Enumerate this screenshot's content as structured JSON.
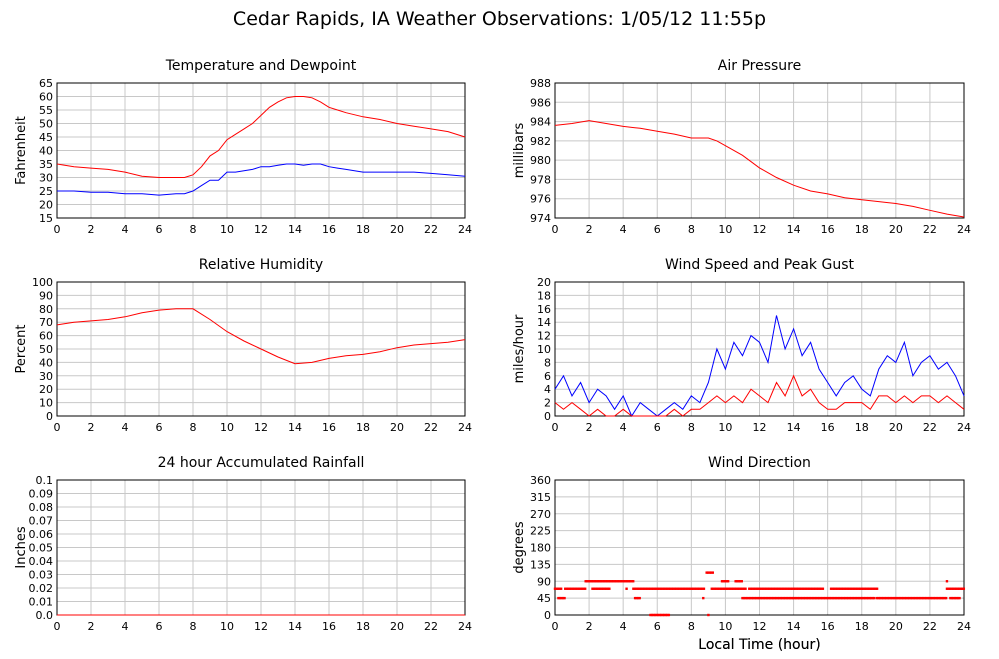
{
  "page_title": "Cedar Rapids, IA Weather Observations: 1/05/12 11:55p",
  "xlabel_bottom": "Local Time (hour)",
  "x_ticks": [
    0,
    2,
    4,
    6,
    8,
    10,
    12,
    14,
    16,
    18,
    20,
    22,
    24
  ],
  "colors": {
    "red": "#ff0000",
    "blue": "#0000ff",
    "grid": "#c8c8c8",
    "axis": "#000000"
  },
  "chart_data": [
    {
      "id": "temp",
      "type": "line",
      "title": "Temperature and Dewpoint",
      "xlabel": "",
      "ylabel": "Fahrenheit",
      "xlim": [
        0,
        24
      ],
      "ylim": [
        15,
        65
      ],
      "yticks": [
        15,
        20,
        25,
        30,
        35,
        40,
        45,
        50,
        55,
        60,
        65
      ],
      "grid": true,
      "series": [
        {
          "color": "#ff0000",
          "x": [
            0,
            1,
            2,
            3,
            4,
            5,
            6,
            7,
            7.5,
            8,
            8.5,
            9,
            9.5,
            10,
            10.5,
            11,
            11.5,
            12,
            12.5,
            13,
            13.5,
            14,
            14.5,
            15,
            15.5,
            16,
            16.5,
            17,
            18,
            19,
            20,
            21,
            22,
            23,
            24
          ],
          "y": [
            35,
            34,
            33.5,
            33,
            32,
            30.5,
            30,
            30,
            30,
            31,
            34,
            38,
            40,
            44,
            46,
            48,
            50,
            53,
            56,
            58,
            59.5,
            60,
            60,
            59.5,
            58,
            56,
            55,
            54,
            52.5,
            51.5,
            50,
            49,
            48,
            47,
            45
          ]
        },
        {
          "color": "#0000ff",
          "x": [
            0,
            1,
            2,
            3,
            4,
            5,
            6,
            7,
            7.5,
            8,
            8.5,
            9,
            9.5,
            10,
            10.5,
            11,
            11.5,
            12,
            12.5,
            13,
            13.5,
            14,
            14.5,
            15,
            15.5,
            16,
            16.5,
            17,
            18,
            19,
            20,
            21,
            22,
            23,
            24
          ],
          "y": [
            25,
            25,
            24.5,
            24.5,
            24,
            24,
            23.5,
            24,
            24,
            25,
            27,
            29,
            29,
            32,
            32,
            32.5,
            33,
            34,
            34,
            34.5,
            35,
            35,
            34.5,
            35,
            35,
            34,
            33.5,
            33,
            32,
            32,
            32,
            32,
            31.5,
            31,
            30.5
          ]
        }
      ]
    },
    {
      "id": "press",
      "type": "line",
      "title": "Air Pressure",
      "xlabel": "",
      "ylabel": "millibars",
      "xlim": [
        0,
        24
      ],
      "ylim": [
        974,
        988
      ],
      "yticks": [
        974,
        976,
        978,
        980,
        982,
        984,
        986,
        988
      ],
      "grid": true,
      "series": [
        {
          "color": "#ff0000",
          "x": [
            0,
            1,
            2,
            3,
            4,
            5,
            6,
            7,
            8,
            9,
            9.5,
            10,
            11,
            12,
            13,
            14,
            15,
            16,
            17,
            18,
            19,
            20,
            21,
            22,
            23,
            24
          ],
          "y": [
            983.6,
            983.8,
            984.1,
            983.8,
            983.5,
            983.3,
            983.0,
            982.7,
            982.3,
            982.3,
            982.0,
            981.5,
            980.5,
            979.2,
            978.2,
            977.4,
            976.8,
            976.5,
            976.1,
            975.9,
            975.7,
            975.5,
            975.2,
            974.8,
            974.4,
            974.1
          ]
        }
      ]
    },
    {
      "id": "rh",
      "type": "line",
      "title": "Relative Humidity",
      "xlabel": "",
      "ylabel": "Percent",
      "xlim": [
        0,
        24
      ],
      "ylim": [
        0,
        100
      ],
      "yticks": [
        0,
        10,
        20,
        30,
        40,
        50,
        60,
        70,
        80,
        90,
        100
      ],
      "grid": true,
      "series": [
        {
          "color": "#ff0000",
          "x": [
            0,
            1,
            2,
            3,
            4,
            5,
            6,
            7,
            8,
            9,
            10,
            11,
            12,
            13,
            14,
            15,
            16,
            17,
            18,
            19,
            20,
            21,
            22,
            23,
            24
          ],
          "y": [
            68,
            70,
            71,
            72,
            74,
            77,
            79,
            80,
            80,
            72,
            63,
            56,
            50,
            44,
            39,
            40,
            43,
            45,
            46,
            48,
            51,
            53,
            54,
            55,
            57
          ]
        }
      ]
    },
    {
      "id": "wind",
      "type": "line",
      "title": "Wind Speed and Peak Gust",
      "xlabel": "",
      "ylabel": "miles/hour",
      "xlim": [
        0,
        24
      ],
      "ylim": [
        0,
        20
      ],
      "yticks": [
        0,
        2,
        4,
        6,
        8,
        10,
        12,
        14,
        16,
        18,
        20
      ],
      "grid": true,
      "series": [
        {
          "color": "#0000ff",
          "x": [
            0,
            0.5,
            1,
            1.5,
            2,
            2.5,
            3,
            3.5,
            4,
            4.5,
            5,
            5.5,
            6,
            6.5,
            7,
            7.5,
            8,
            8.5,
            9,
            9.5,
            10,
            10.5,
            11,
            11.5,
            12,
            12.5,
            13,
            13.5,
            14,
            14.5,
            15,
            15.5,
            16,
            16.5,
            17,
            17.5,
            18,
            18.5,
            19,
            19.5,
            20,
            20.5,
            21,
            21.5,
            22,
            22.5,
            23,
            23.5,
            24
          ],
          "y": [
            4,
            6,
            3,
            5,
            2,
            4,
            3,
            1,
            3,
            0,
            2,
            1,
            0,
            1,
            2,
            1,
            3,
            2,
            5,
            10,
            7,
            11,
            9,
            12,
            11,
            8,
            15,
            10,
            13,
            9,
            11,
            7,
            5,
            3,
            5,
            6,
            4,
            3,
            7,
            9,
            8,
            11,
            6,
            8,
            9,
            7,
            8,
            6,
            3
          ]
        },
        {
          "color": "#ff0000",
          "x": [
            0,
            0.5,
            1,
            1.5,
            2,
            2.5,
            3,
            3.5,
            4,
            4.5,
            5,
            5.5,
            6,
            6.5,
            7,
            7.5,
            8,
            8.5,
            9,
            9.5,
            10,
            10.5,
            11,
            11.5,
            12,
            12.5,
            13,
            13.5,
            14,
            14.5,
            15,
            15.5,
            16,
            16.5,
            17,
            17.5,
            18,
            18.5,
            19,
            19.5,
            20,
            20.5,
            21,
            21.5,
            22,
            22.5,
            23,
            23.5,
            24
          ],
          "y": [
            2,
            1,
            2,
            1,
            0,
            1,
            0,
            0,
            1,
            0,
            0,
            0,
            0,
            0,
            1,
            0,
            1,
            1,
            2,
            3,
            2,
            3,
            2,
            4,
            3,
            2,
            5,
            3,
            6,
            3,
            4,
            2,
            1,
            1,
            2,
            2,
            2,
            1,
            3,
            3,
            2,
            3,
            2,
            3,
            3,
            2,
            3,
            2,
            1
          ]
        }
      ]
    },
    {
      "id": "rain",
      "type": "line",
      "title": "24 hour Accumulated Rainfall",
      "xlabel": "",
      "ylabel": "Inches",
      "xlim": [
        0,
        24
      ],
      "ylim": [
        0,
        0.1
      ],
      "yticks": [
        0.0,
        0.01,
        0.02,
        0.03,
        0.04,
        0.05,
        0.06,
        0.07,
        0.08,
        0.09,
        0.1
      ],
      "ytick_labels": [
        "0.0",
        "0.01",
        "0.02",
        "0.03",
        "0.04",
        "0.05",
        "0.06",
        "0.07",
        "0.08",
        "0.09",
        "0.1"
      ],
      "grid": true,
      "series": [
        {
          "color": "#ff0000",
          "x": [
            0,
            24
          ],
          "y": [
            0,
            0
          ]
        }
      ]
    },
    {
      "id": "dir",
      "type": "scatter",
      "title": "Wind Direction",
      "xlabel": "Local Time (hour)",
      "ylabel": "degrees",
      "xlim": [
        0,
        24
      ],
      "ylim": [
        0,
        360
      ],
      "yticks": [
        0,
        45,
        90,
        135,
        180,
        225,
        270,
        315,
        360
      ],
      "grid": true,
      "series": [
        {
          "color": "#ff0000",
          "segments": [
            {
              "x0": 0,
              "x1": 0.4,
              "y": 70
            },
            {
              "x0": 0.2,
              "x1": 0.6,
              "y": 45
            },
            {
              "x0": 0.6,
              "x1": 1.8,
              "y": 70
            },
            {
              "x0": 1.8,
              "x1": 4.6,
              "y": 90
            },
            {
              "x0": 2.2,
              "x1": 3.2,
              "y": 70
            },
            {
              "x0": 4.6,
              "x1": 8.8,
              "y": 70
            },
            {
              "x0": 4.7,
              "x1": 5.0,
              "y": 45
            },
            {
              "x0": 5.6,
              "x1": 6.7,
              "y": 0
            },
            {
              "x0": 8.9,
              "x1": 9.3,
              "y": 113
            },
            {
              "x0": 9.2,
              "x1": 11.2,
              "y": 70
            },
            {
              "x0": 9.8,
              "x1": 10.2,
              "y": 90
            },
            {
              "x0": 10.6,
              "x1": 11.0,
              "y": 90
            },
            {
              "x0": 11.0,
              "x1": 18.8,
              "y": 45
            },
            {
              "x0": 11.4,
              "x1": 15.8,
              "y": 70
            },
            {
              "x0": 16.2,
              "x1": 18.9,
              "y": 70
            },
            {
              "x0": 18.9,
              "x1": 23.0,
              "y": 45
            },
            {
              "x0": 23.0,
              "x1": 24.0,
              "y": 70
            },
            {
              "x0": 23.2,
              "x1": 23.8,
              "y": 45
            }
          ],
          "points": [
            {
              "x": 4.2,
              "y": 70
            },
            {
              "x": 9.0,
              "y": 0
            },
            {
              "x": 8.7,
              "y": 45
            },
            {
              "x": 23.0,
              "y": 90
            }
          ]
        }
      ]
    }
  ]
}
